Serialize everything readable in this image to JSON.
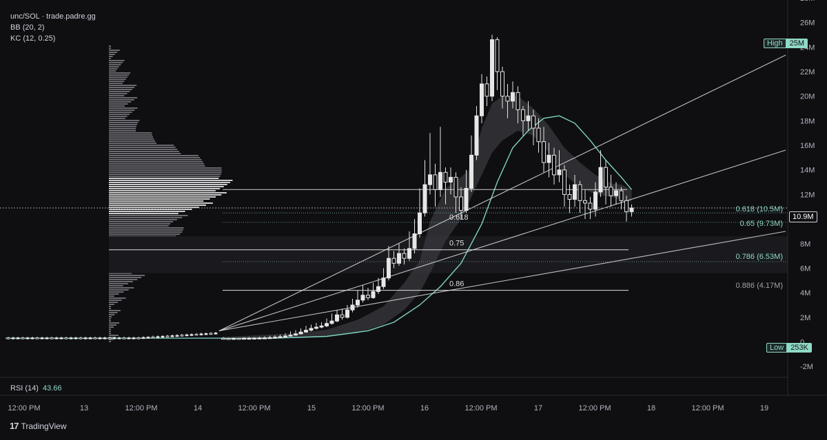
{
  "legend": {
    "symbol": "unc/SOL · trade.padre.gg",
    "bb": "BB (20, 2)",
    "kc": "KC (12, 0.25)"
  },
  "rsi": {
    "label": "RSI (14)",
    "value": "43.66"
  },
  "branding": {
    "name": "TradingView"
  },
  "colors": {
    "background": "#0f0f12",
    "candle": "#e6e6e6",
    "band": "#3a3a40",
    "kc_line": "#7fd6c2",
    "fib_teal": "#8fd9c7",
    "trendline": "#e0e0e0"
  },
  "chart_data": {
    "type": "candlestick",
    "y_axis": {
      "ticks": [
        "28M",
        "26M",
        "24M",
        "22M",
        "20M",
        "18M",
        "16M",
        "14M",
        "12M",
        "10M",
        "8M",
        "6M",
        "4M",
        "2M",
        "0",
        "-2M"
      ],
      "range": [
        -2000000,
        28000000
      ]
    },
    "x_axis": {
      "ticks": [
        "12:00 PM",
        "13",
        "12:00 PM",
        "14",
        "12:00 PM",
        "15",
        "12:00 PM",
        "16",
        "12:00 PM",
        "17",
        "12:00 PM",
        "18",
        "12:00 PM",
        "19"
      ]
    },
    "markers": {
      "high": {
        "label": "High",
        "value": "25M"
      },
      "low": {
        "label": "Low",
        "value": "253K"
      },
      "last": {
        "value": "10.9M"
      }
    },
    "fib_levels": [
      {
        "ratio": "0.618",
        "right_label": "0.618 (10.5M)",
        "value": 10500000
      },
      {
        "ratio": "0.65",
        "right_label": "0.65 (9.73M)",
        "value": 9730000
      },
      {
        "ratio": "0.75",
        "right_label": "",
        "value": 7500000
      },
      {
        "ratio": "0.786",
        "right_label": "0.786 (6.53M)",
        "value": 6530000
      },
      {
        "ratio": "0.86",
        "right_label": "",
        "value": 4200000
      },
      {
        "ratio": "0.886",
        "right_label": "0.886 (4.17M)",
        "value": 4170000
      }
    ],
    "candles": [
      [
        0.3,
        0.28,
        0.4,
        0.2
      ],
      [
        0.28,
        0.27,
        0.35,
        0.2
      ],
      [
        0.27,
        0.29,
        0.36,
        0.2
      ],
      [
        0.29,
        0.28,
        0.34,
        0.22
      ],
      [
        0.28,
        0.3,
        0.38,
        0.22
      ],
      [
        0.3,
        0.3,
        0.4,
        0.24
      ],
      [
        0.3,
        0.31,
        0.39,
        0.25
      ],
      [
        0.31,
        0.32,
        0.42,
        0.26
      ],
      [
        0.32,
        0.33,
        0.45,
        0.28
      ],
      [
        0.33,
        0.35,
        0.5,
        0.3
      ],
      [
        0.35,
        0.38,
        0.55,
        0.32
      ],
      [
        0.38,
        0.42,
        0.6,
        0.35
      ],
      [
        0.42,
        0.48,
        0.7,
        0.4
      ],
      [
        0.48,
        0.55,
        0.85,
        0.45
      ],
      [
        0.55,
        0.65,
        0.95,
        0.5
      ],
      [
        0.65,
        0.8,
        1.1,
        0.6
      ],
      [
        0.8,
        0.95,
        1.3,
        0.75
      ],
      [
        0.95,
        1.1,
        1.4,
        0.85
      ],
      [
        1.1,
        1.2,
        1.55,
        1.0
      ],
      [
        1.2,
        1.3,
        1.6,
        1.1
      ],
      [
        1.3,
        1.5,
        1.9,
        1.2
      ],
      [
        1.5,
        1.7,
        2.3,
        1.4
      ],
      [
        1.7,
        2.2,
        2.6,
        1.6
      ],
      [
        2.2,
        2.0,
        2.7,
        1.8
      ],
      [
        2.0,
        2.6,
        3.0,
        1.9
      ],
      [
        2.6,
        3.0,
        3.5,
        2.4
      ],
      [
        3.0,
        3.4,
        4.2,
        2.8
      ],
      [
        3.4,
        3.8,
        4.6,
        3.2
      ],
      [
        3.8,
        3.6,
        4.4,
        3.4
      ],
      [
        3.6,
        4.1,
        4.8,
        3.5
      ],
      [
        4.1,
        4.5,
        5.2,
        3.9
      ],
      [
        4.5,
        5.2,
        6.0,
        4.3
      ],
      [
        5.2,
        6.8,
        7.8,
        5.0
      ],
      [
        6.8,
        6.4,
        7.4,
        6.0
      ],
      [
        6.4,
        7.2,
        8.0,
        6.2
      ],
      [
        7.2,
        6.8,
        7.6,
        6.3
      ],
      [
        6.8,
        7.6,
        9.0,
        6.6
      ],
      [
        7.6,
        8.8,
        10.0,
        7.2
      ],
      [
        8.8,
        10.5,
        12.5,
        8.5
      ],
      [
        10.5,
        12.8,
        14.8,
        10.2
      ],
      [
        12.8,
        13.6,
        17.0,
        12.0
      ],
      [
        13.6,
        12.4,
        14.5,
        11.0
      ],
      [
        12.4,
        13.8,
        17.5,
        11.8
      ],
      [
        13.8,
        13.0,
        14.2,
        11.2
      ],
      [
        13.0,
        13.4,
        14.2,
        12.0
      ],
      [
        13.4,
        11.8,
        13.8,
        10.5
      ],
      [
        11.8,
        10.7,
        12.6,
        10.0
      ],
      [
        10.7,
        12.5,
        14.0,
        10.5
      ],
      [
        12.5,
        15.2,
        16.8,
        12.2
      ],
      [
        15.2,
        18.4,
        19.2,
        14.8
      ],
      [
        18.4,
        21.0,
        21.8,
        17.8
      ],
      [
        21.0,
        20.0,
        21.6,
        19.2
      ],
      [
        20.0,
        24.6,
        25.0,
        19.6
      ],
      [
        24.6,
        22.0,
        24.8,
        20.5
      ],
      [
        22.0,
        20.0,
        22.4,
        19.0
      ],
      [
        20.0,
        19.6,
        21.0,
        18.2
      ],
      [
        19.6,
        20.3,
        21.2,
        19.0
      ],
      [
        20.3,
        18.9,
        20.8,
        17.8
      ],
      [
        18.9,
        18.0,
        19.2,
        16.8
      ],
      [
        18.0,
        18.4,
        19.6,
        17.2
      ],
      [
        18.4,
        17.4,
        18.9,
        16.0
      ],
      [
        17.4,
        16.3,
        18.2,
        15.4
      ],
      [
        16.3,
        14.6,
        17.5,
        13.8
      ],
      [
        14.6,
        15.2,
        16.2,
        13.4
      ],
      [
        15.2,
        13.6,
        15.8,
        12.8
      ],
      [
        13.6,
        14.0,
        15.6,
        13.0
      ],
      [
        14.0,
        12.0,
        14.4,
        11.0
      ],
      [
        12.0,
        11.6,
        12.8,
        10.5
      ],
      [
        11.6,
        12.8,
        13.6,
        11.0
      ],
      [
        12.8,
        11.5,
        13.1,
        10.5
      ],
      [
        11.5,
        11.3,
        12.4,
        10.0
      ],
      [
        11.3,
        10.8,
        11.8,
        10.0
      ],
      [
        10.8,
        12.2,
        13.0,
        10.2
      ],
      [
        12.2,
        14.2,
        15.6,
        11.8
      ],
      [
        14.2,
        12.6,
        14.8,
        11.2
      ],
      [
        12.6,
        11.9,
        13.6,
        11.0
      ],
      [
        11.9,
        12.3,
        13.0,
        11.2
      ],
      [
        12.3,
        11.5,
        12.6,
        10.8
      ],
      [
        11.5,
        10.6,
        11.9,
        9.8
      ],
      [
        10.6,
        10.9,
        11.2,
        10.2
      ]
    ],
    "kc_mid": [
      [
        0,
        0.28
      ],
      [
        10,
        0.3
      ],
      [
        20,
        0.45
      ],
      [
        28,
        0.9
      ],
      [
        33,
        1.6
      ],
      [
        38,
        3.0
      ],
      [
        42,
        4.5
      ],
      [
        46,
        6.4
      ],
      [
        50,
        9.6
      ],
      [
        53,
        13.0
      ],
      [
        56,
        15.8
      ],
      [
        59,
        17.2
      ],
      [
        62,
        18.2
      ],
      [
        65,
        18.4
      ],
      [
        68,
        17.8
      ],
      [
        71,
        16.4
      ],
      [
        74,
        14.8
      ],
      [
        77,
        13.4
      ],
      [
        79,
        12.4
      ]
    ],
    "band_top": [
      [
        0,
        0.4
      ],
      [
        14,
        0.7
      ],
      [
        20,
        1.0
      ],
      [
        26,
        1.8
      ],
      [
        31,
        2.9
      ],
      [
        35,
        4.8
      ],
      [
        38,
        6.6
      ],
      [
        40,
        9.8
      ],
      [
        43,
        12.5
      ],
      [
        46,
        13.4
      ],
      [
        48,
        14.2
      ],
      [
        50,
        17.4
      ],
      [
        52,
        19.4
      ],
      [
        54,
        20.0
      ],
      [
        57,
        20.0
      ],
      [
        60,
        19.0
      ],
      [
        63,
        17.6
      ],
      [
        66,
        15.8
      ],
      [
        69,
        14.6
      ],
      [
        72,
        13.6
      ],
      [
        75,
        12.9
      ],
      [
        77,
        12.8
      ],
      [
        79,
        12.4
      ]
    ],
    "band_bot": [
      [
        0,
        0.2
      ],
      [
        14,
        0.3
      ],
      [
        20,
        0.4
      ],
      [
        26,
        0.7
      ],
      [
        31,
        1.4
      ],
      [
        35,
        2.6
      ],
      [
        38,
        4.0
      ],
      [
        40,
        5.6
      ],
      [
        43,
        8.2
      ],
      [
        46,
        10.0
      ],
      [
        48,
        11.8
      ],
      [
        50,
        13.6
      ],
      [
        52,
        15.4
      ],
      [
        54,
        16.4
      ],
      [
        57,
        17.2
      ],
      [
        60,
        16.8
      ],
      [
        63,
        15.4
      ],
      [
        66,
        13.6
      ],
      [
        69,
        12.6
      ],
      [
        72,
        12.0
      ],
      [
        75,
        11.8
      ],
      [
        77,
        11.6
      ],
      [
        79,
        11.4
      ]
    ]
  }
}
